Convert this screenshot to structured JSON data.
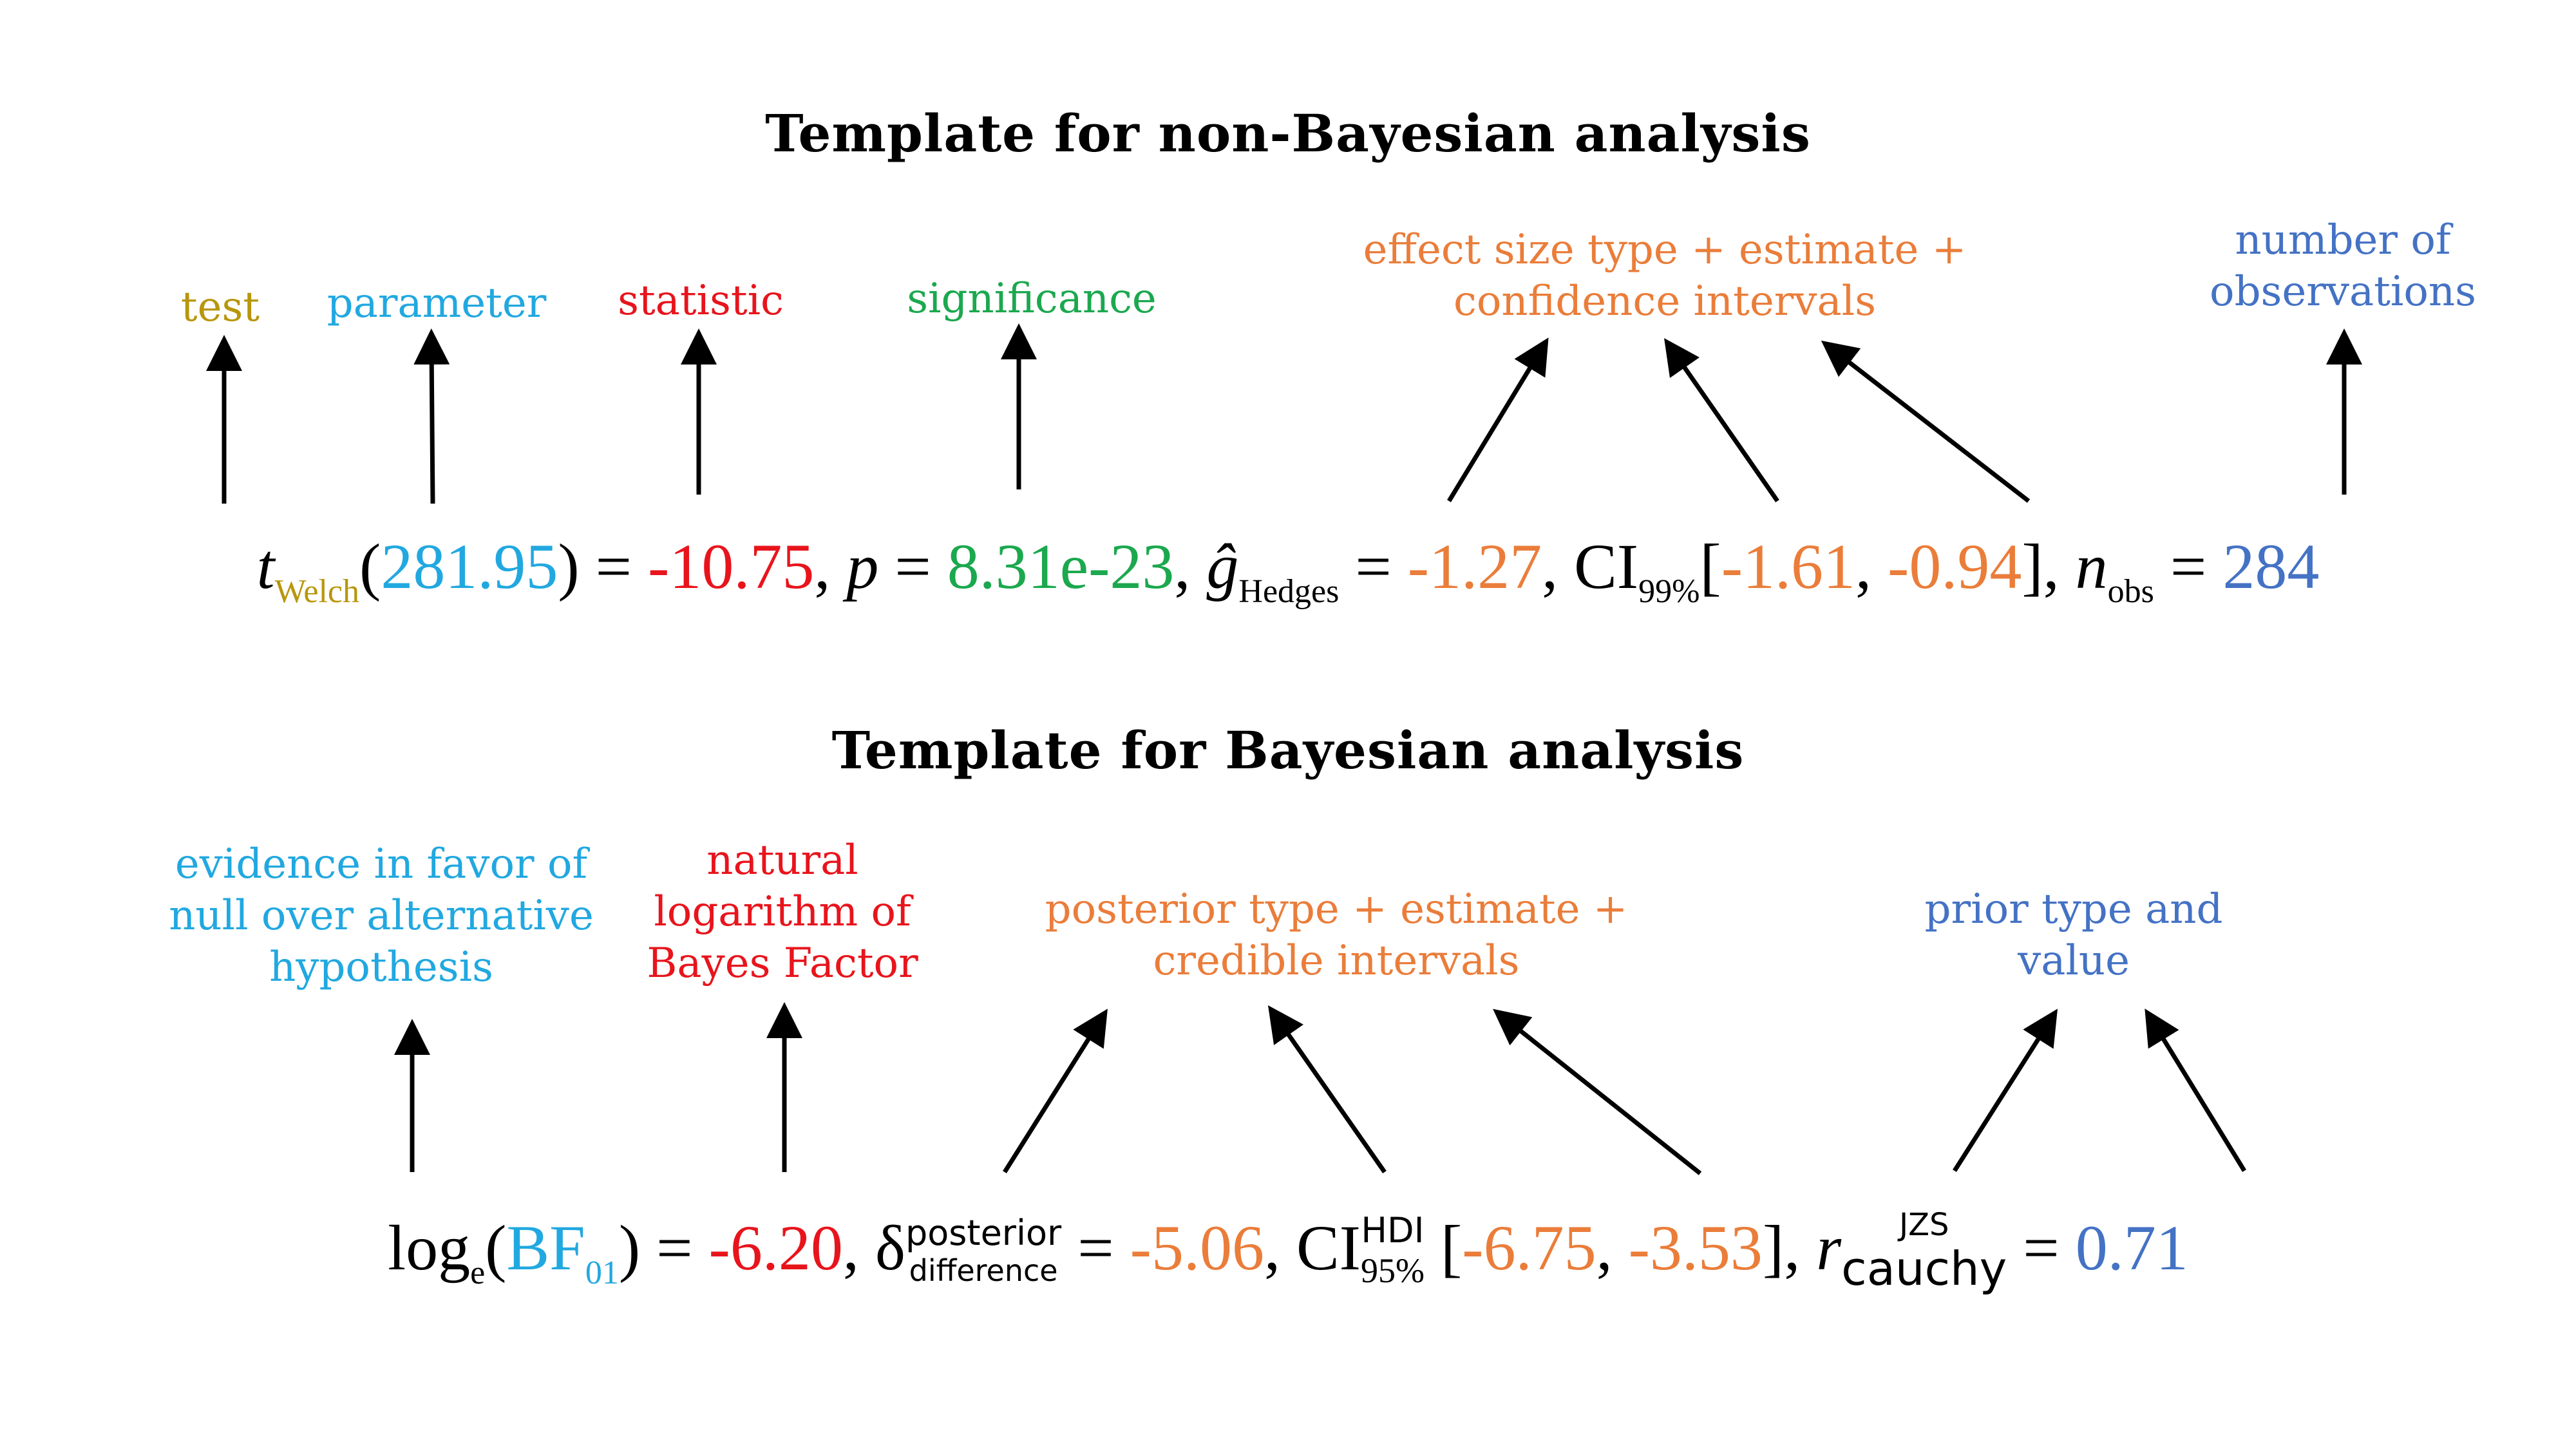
{
  "colors": {
    "test": "#B8960C",
    "parameter": "#21A8E0",
    "statistic": "#E8141C",
    "significance": "#1BA84E",
    "effect": "#EA7D3A",
    "observations": "#4472C4",
    "black": "#000000"
  },
  "nonbayes": {
    "title": "Template for non-Bayesian analysis",
    "labels": {
      "test": "test",
      "parameter": "parameter",
      "statistic": "statistic",
      "significance": "significance",
      "effect_line1": "effect size type + estimate +",
      "effect_line2": "confidence intervals",
      "obs_line1": "number of",
      "obs_line2": "observations"
    },
    "formula": {
      "t": "t",
      "welch": "Welch",
      "open": "(",
      "df": "281.95",
      "close_eq": ") = ",
      "stat": "-10.75",
      "comma1": ", ",
      "p": "p",
      "eq1": " = ",
      "pval": "8.31e-23",
      "comma2": ", ",
      "g": "ĝ",
      "hedges": "Hedges",
      "eq2": " = ",
      "es": "-1.27",
      "comma3": ", CI",
      "ci_level": "99%",
      "bracket_open": "[",
      "ci_low": "-1.61",
      "ci_sep": ", ",
      "ci_high": "-0.94",
      "bracket_close": "], ",
      "n": "n",
      "obs": "obs",
      "eq3": " = ",
      "nval": "284"
    }
  },
  "bayes": {
    "title": "Template for Bayesian analysis",
    "labels": {
      "evidence_line1": "evidence in favor of",
      "evidence_line2": "null over alternative",
      "evidence_line3": "hypothesis",
      "log_line1": "natural",
      "log_line2": "logarithm of",
      "log_line3": "Bayes Factor",
      "posterior_line1": "posterior type + estimate +",
      "posterior_line2": "credible intervals",
      "prior_line1": "prior type and",
      "prior_line2": "value"
    },
    "formula": {
      "log": "log",
      "e": "e",
      "open": "(",
      "bf": "BF",
      "bf_sub": "01",
      "close_eq": ") = ",
      "logbf": "-6.20",
      "comma1": ", ",
      "delta": "δ",
      "posterior": "posterior",
      "difference": "difference",
      "eq1": " = ",
      "est": "-5.06",
      "comma2": ", CI",
      "hdi": "HDI",
      "ci_level": "95%",
      "bracket_open": " [",
      "ci_low": "-6.75",
      "ci_sep": ", ",
      "ci_high": "-3.53",
      "bracket_close": "], ",
      "r": "r",
      "jzs": "JZS",
      "cauchy": "cauchy",
      "eq2": " = ",
      "prior_val": "0.71"
    }
  }
}
